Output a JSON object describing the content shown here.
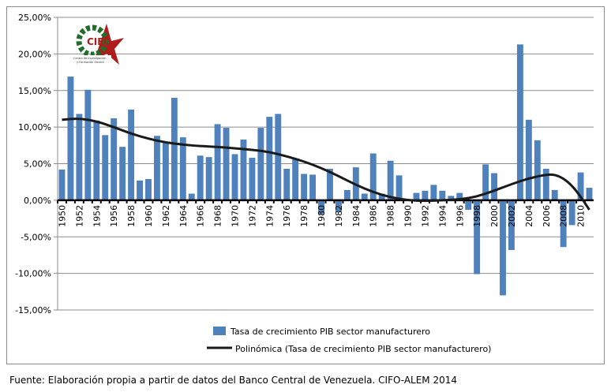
{
  "chart_data": {
    "type": "bar",
    "title": "",
    "xlabel": "",
    "ylabel": "",
    "ylim": [
      -15,
      25
    ],
    "yticks": [
      "25,00%",
      "20,00%",
      "15,00%",
      "10,00%",
      "5,00%",
      "0,00%",
      "-5,00%",
      "-10,00%",
      "-15,00%"
    ],
    "ytick_values": [
      25,
      20,
      15,
      10,
      5,
      0,
      -5,
      -10,
      -15
    ],
    "grid": true,
    "legend_position": "bottom",
    "categories": [
      1950,
      1951,
      1952,
      1953,
      1954,
      1955,
      1956,
      1957,
      1958,
      1959,
      1960,
      1961,
      1962,
      1963,
      1964,
      1965,
      1966,
      1967,
      1968,
      1969,
      1970,
      1971,
      1972,
      1973,
      1974,
      1975,
      1976,
      1977,
      1978,
      1979,
      1980,
      1981,
      1982,
      1983,
      1984,
      1985,
      1986,
      1987,
      1988,
      1989,
      1990,
      1991,
      1992,
      1993,
      1994,
      1995,
      1996,
      1997,
      1998,
      1999,
      2000,
      2001,
      2002,
      2003,
      2004,
      2005,
      2006,
      2007,
      2008,
      2009,
      2010,
      2011
    ],
    "series": [
      {
        "name": "Tasa de crecimiento PIB sector manufacturero",
        "type": "bar",
        "color": "#4f81bd",
        "values": [
          4.2,
          16.9,
          11.8,
          15.1,
          10.9,
          8.9,
          11.2,
          7.3,
          12.4,
          2.7,
          2.9,
          8.8,
          7.9,
          14.0,
          8.6,
          0.9,
          6.1,
          5.9,
          10.4,
          9.9,
          6.3,
          8.3,
          5.8,
          9.9,
          11.4,
          11.8,
          4.3,
          5.6,
          3.6,
          3.5,
          -1.9,
          4.3,
          -1.6,
          1.4,
          4.5,
          0.9,
          6.4,
          0.9,
          5.4,
          3.4,
          0.1,
          1.0,
          1.3,
          2.1,
          1.3,
          0.6,
          1.0,
          -1.3,
          -10.1,
          4.9,
          3.7,
          -13.0,
          -6.8,
          21.3,
          11.0,
          8.2,
          4.3,
          1.4,
          -6.4,
          -3.4,
          3.8,
          1.7
        ]
      },
      {
        "name": "Polinómica (Tasa de crecimiento PIB sector manufacturero)",
        "type": "line",
        "color": "#1a1a1a",
        "x": [
          1950,
          1952,
          1954,
          1956,
          1958,
          1960,
          1962,
          1964,
          1966,
          1968,
          1970,
          1972,
          1974,
          1976,
          1978,
          1980,
          1982,
          1984,
          1986,
          1988,
          1990,
          1992,
          1994,
          1996,
          1998,
          2000,
          2002,
          2004,
          2006,
          2007,
          2008,
          2009,
          2010,
          2011
        ],
        "y": [
          11.0,
          11.2,
          10.8,
          10.0,
          9.1,
          8.4,
          7.9,
          7.6,
          7.4,
          7.3,
          7.1,
          6.9,
          6.6,
          6.0,
          5.3,
          4.4,
          3.3,
          2.1,
          1.1,
          0.4,
          0.0,
          -0.1,
          0.0,
          0.1,
          0.5,
          1.3,
          2.2,
          3.0,
          3.5,
          3.5,
          3.0,
          2.0,
          0.5,
          -1.3
        ]
      }
    ],
    "xtick_labels_every": 2
  },
  "logo": {
    "text": "CIFO",
    "subtitle": "Centro de Investigación y Formación Obrera"
  },
  "footer": "Fuente: Elaboración propia a partir de datos del Banco Central de Venezuela. CIFO-ALEM 2014"
}
